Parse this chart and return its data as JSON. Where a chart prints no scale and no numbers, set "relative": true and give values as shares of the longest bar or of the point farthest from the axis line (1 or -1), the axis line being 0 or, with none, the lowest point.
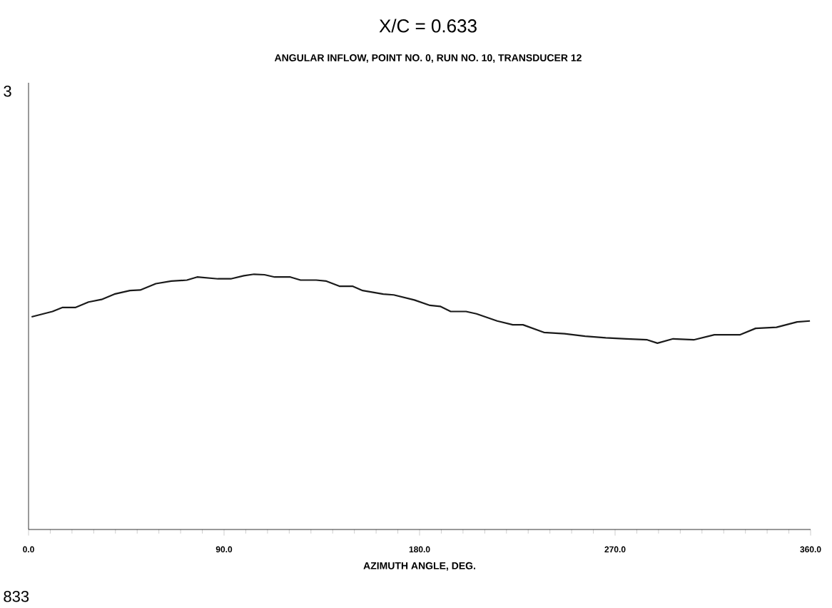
{
  "chart_data": {
    "type": "line",
    "title": "X/C = 0.633",
    "subtitle": "ANGULAR INFLOW, POINT NO. 0, RUN NO. 10, TRANSDUCER 12",
    "xlabel": "AZIMUTH ANGLE, DEG.",
    "annotations": [
      "833",
      "3"
    ],
    "relative": true,
    "xlim": [
      0,
      360
    ],
    "xticks": [
      {
        "value": 0,
        "label": "0.0"
      },
      {
        "value": 90,
        "label": "90.0"
      },
      {
        "value": 180,
        "label": "180.0"
      },
      {
        "value": 270,
        "label": "270.0"
      },
      {
        "value": 360,
        "label": "360.0"
      }
    ],
    "series": [
      {
        "color": "#1a1a1a",
        "x": [
          1.4,
          11.0,
          15.7,
          21.7,
          27.6,
          33.6,
          39.5,
          46.7,
          51.4,
          58.6,
          65.7,
          72.9,
          77.6,
          87.2,
          93.1,
          99.1,
          103.8,
          108.6,
          113.3,
          120.5,
          125.2,
          132.4,
          137.1,
          143.1,
          149.1,
          153.8,
          163.3,
          168.1,
          177.6,
          184.8,
          189.5,
          194.3,
          201.4,
          206.2,
          215.7,
          222.9,
          227.6,
          237.2,
          246.7,
          256.2,
          265.7,
          275.2,
          284.8,
          289.5,
          296.7,
          306.2,
          315.7,
          327.6,
          334.7,
          344.3,
          353.8,
          359.7
        ],
        "values": [
          0.833,
          0.854,
          0.87,
          0.87,
          0.891,
          0.901,
          0.922,
          0.936,
          0.938,
          0.963,
          0.973,
          0.977,
          0.989,
          0.982,
          0.982,
          0.994,
          1.0,
          0.998,
          0.989,
          0.989,
          0.977,
          0.977,
          0.973,
          0.953,
          0.953,
          0.936,
          0.922,
          0.919,
          0.899,
          0.878,
          0.874,
          0.854,
          0.854,
          0.845,
          0.817,
          0.802,
          0.802,
          0.772,
          0.767,
          0.757,
          0.751,
          0.747,
          0.743,
          0.73,
          0.747,
          0.743,
          0.763,
          0.763,
          0.788,
          0.792,
          0.813,
          0.817
        ]
      }
    ]
  }
}
